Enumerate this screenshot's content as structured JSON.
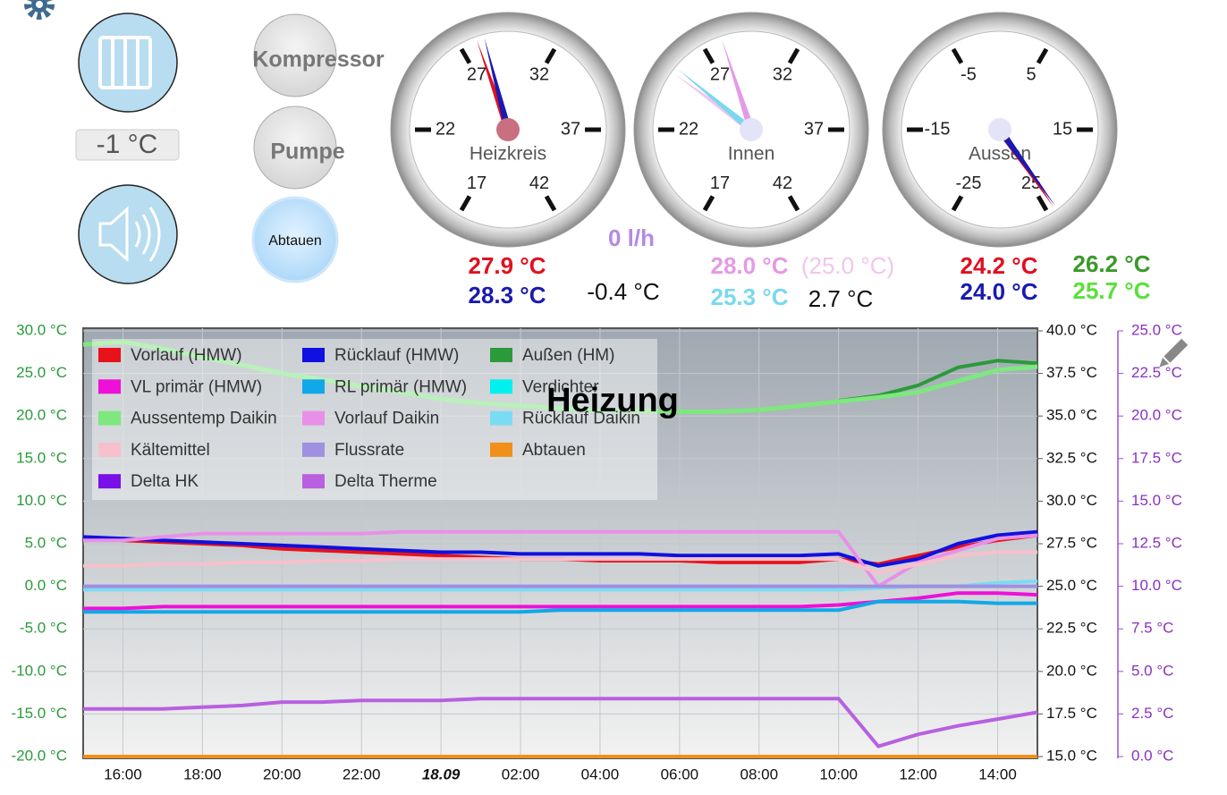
{
  "buttons": {
    "kompressor": "Kompressor",
    "pumpe": "Pumpe",
    "abtauen": "Abtauen"
  },
  "setpoint": "-1 °C",
  "gauges": [
    {
      "label": "Heizkreis",
      "range": [
        17,
        42
      ],
      "ticks": [
        17,
        22,
        27,
        32,
        37,
        42
      ],
      "hub": "#c87080",
      "needles": [
        {
          "value": 27.9,
          "label": "27.9 °C",
          "color": "#e01020"
        },
        {
          "value": 28.3,
          "label": "28.3 °C",
          "color": "#1a1ab0"
        }
      ]
    },
    {
      "label": "Innen",
      "range": [
        17,
        42
      ],
      "ticks": [
        17,
        22,
        27,
        32,
        37,
        42
      ],
      "hub": "#e4e4f8",
      "needles": [
        {
          "value": 28.0,
          "label": "28.0 °C",
          "color": "#e49ae4"
        },
        {
          "value": 25.0,
          "label": "(25.0 °C)",
          "color": "#f0c6ec"
        },
        {
          "value": 25.3,
          "label": "25.3 °C",
          "color": "#7ad8f0"
        }
      ]
    },
    {
      "label": "Aussen",
      "range": [
        -25,
        25
      ],
      "ticks": [
        -25,
        -15,
        -5,
        5,
        15,
        25
      ],
      "hub": "#e4e4f8",
      "needles": [
        {
          "value": 24.2,
          "label": "24.2 °C",
          "color": "#e01020"
        },
        {
          "value": 24.0,
          "label": "24.0 °C",
          "color": "#1a1ab0"
        }
      ]
    }
  ],
  "readouts": [
    {
      "text": "0 l/h",
      "color": "#b48ae4"
    },
    {
      "text": "-0.4 °C",
      "color": "#111111"
    },
    {
      "text": "2.7 °C",
      "color": "#111111"
    },
    {
      "text": "26.2 °C",
      "color": "#3a9a2a"
    },
    {
      "text": "25.7 °C",
      "color": "#5ae03a"
    }
  ],
  "chart_data": {
    "type": "line",
    "title": "Heizung",
    "categories": [
      null,
      "16:00",
      null,
      "18:00",
      null,
      "20:00",
      null,
      "22:00",
      null,
      "18.09",
      null,
      "02:00",
      null,
      "04:00",
      null,
      "06:00",
      null,
      "08:00",
      null,
      "10:00",
      null,
      "12:00",
      null,
      "14:00",
      null
    ],
    "xtick_bold": 9,
    "ylim": [
      -20,
      30
    ],
    "yticks": [
      {
        "value": 30,
        "label": "30.0 °C"
      },
      {
        "value": 25,
        "label": "25.0 °C"
      },
      {
        "value": 20,
        "label": "20.0 °C"
      },
      {
        "value": 15,
        "label": "15.0 °C"
      },
      {
        "value": 10,
        "label": "10.0 °C"
      },
      {
        "value": 5,
        "label": "5.0 °C"
      },
      {
        "value": 0,
        "label": "0.0 °C"
      },
      {
        "value": -5,
        "label": "-5.0 °C"
      },
      {
        "value": -10,
        "label": "-10.0 °C"
      },
      {
        "value": -15,
        "label": "-15.0 °C"
      },
      {
        "value": -20,
        "label": "-20.0 °C"
      }
    ],
    "y2lim": [
      15,
      40
    ],
    "y2ticks": [
      {
        "value": 40,
        "label": "40.0 °C"
      },
      {
        "value": 37.5,
        "label": "37.5 °C"
      },
      {
        "value": 35,
        "label": "35.0 °C"
      },
      {
        "value": 32.5,
        "label": "32.5 °C"
      },
      {
        "value": 30,
        "label": "30.0 °C"
      },
      {
        "value": 27.5,
        "label": "27.5 °C"
      },
      {
        "value": 25,
        "label": "25.0 °C"
      },
      {
        "value": 22.5,
        "label": "22.5 °C"
      },
      {
        "value": 20,
        "label": "20.0 °C"
      },
      {
        "value": 17.5,
        "label": "17.5 °C"
      },
      {
        "value": 15,
        "label": "15.0 °C"
      }
    ],
    "y3lim": [
      0,
      25
    ],
    "y3ticks": [
      {
        "value": 25,
        "label": "25.0 °C"
      },
      {
        "value": 22.5,
        "label": "22.5 °C"
      },
      {
        "value": 20,
        "label": "20.0 °C"
      },
      {
        "value": 17.5,
        "label": "17.5 °C"
      },
      {
        "value": 15,
        "label": "15.0 °C"
      },
      {
        "value": 12.5,
        "label": "12.5 °C"
      },
      {
        "value": 10,
        "label": "10.0 °C"
      },
      {
        "value": 7.5,
        "label": "7.5 °C"
      },
      {
        "value": 5,
        "label": "5.0 °C"
      },
      {
        "value": 2.5,
        "label": "2.5 °C"
      },
      {
        "value": 0,
        "label": "0.0 °C"
      }
    ],
    "grid": true,
    "series": [
      {
        "name": "Vorlauf (HMW)",
        "color": "#e8121a",
        "axis": "y2",
        "values": [
          27.8,
          27.7,
          27.6,
          27.5,
          27.4,
          27.2,
          27.1,
          27.0,
          26.9,
          26.8,
          26.7,
          26.6,
          26.6,
          26.5,
          26.5,
          26.5,
          26.4,
          26.4,
          26.4,
          26.6,
          26.3,
          26.8,
          27.3,
          27.7,
          28.0
        ]
      },
      {
        "name": "Rücklauf (HMW)",
        "color": "#1010e0",
        "axis": "y2",
        "values": [
          27.9,
          27.8,
          27.7,
          27.6,
          27.5,
          27.4,
          27.3,
          27.2,
          27.1,
          27.0,
          27.0,
          26.9,
          26.9,
          26.9,
          26.9,
          26.8,
          26.8,
          26.8,
          26.8,
          26.9,
          26.2,
          26.6,
          27.5,
          28.0,
          28.2
        ]
      },
      {
        "name": "Außen (HM)",
        "color": "#2a9a3a",
        "axis": "y",
        "values": [
          null,
          null,
          null,
          null,
          null,
          null,
          null,
          null,
          null,
          null,
          null,
          null,
          null,
          null,
          null,
          null,
          null,
          null,
          null,
          21.8,
          22.4,
          23.6,
          25.7,
          26.5,
          26.2
        ]
      },
      {
        "name": "VL primär (HMW)",
        "color": "#ee10d8",
        "axis": "y2",
        "values": [
          23.7,
          23.7,
          23.8,
          23.8,
          23.8,
          23.8,
          23.8,
          23.8,
          23.8,
          23.8,
          23.8,
          23.8,
          23.8,
          23.8,
          23.8,
          23.8,
          23.8,
          23.8,
          23.8,
          23.9,
          24.1,
          24.3,
          24.6,
          24.6,
          24.5
        ]
      },
      {
        "name": "RL primär (HMW)",
        "color": "#10a8e8",
        "axis": "y2",
        "values": [
          23.5,
          23.5,
          23.5,
          23.5,
          23.5,
          23.5,
          23.5,
          23.5,
          23.5,
          23.5,
          23.5,
          23.5,
          23.6,
          23.6,
          23.6,
          23.6,
          23.6,
          23.6,
          23.6,
          23.6,
          24.1,
          24.1,
          24.1,
          24.0,
          24.0
        ]
      },
      {
        "name": "Verdichter",
        "color": "#00f0f0",
        "axis": "y",
        "values": [
          null,
          null,
          null,
          null,
          null,
          null,
          null,
          null,
          null,
          null,
          null,
          null,
          null,
          null,
          null,
          null,
          null,
          null,
          null,
          null,
          null,
          null,
          null,
          null,
          null
        ]
      },
      {
        "name": "Aussentemp Daikin",
        "color": "#7ee87e",
        "axis": "y",
        "values": [
          28.4,
          28.7,
          27.9,
          26.9,
          26.0,
          25.0,
          24.3,
          23.5,
          22.8,
          22.0,
          21.5,
          21.2,
          20.9,
          20.7,
          20.6,
          20.5,
          20.5,
          20.7,
          21.2,
          21.7,
          22.2,
          22.8,
          24.1,
          25.4,
          25.8
        ]
      },
      {
        "name": "Vorlauf Daikin",
        "color": "#e890e8",
        "axis": "y2",
        "values": [
          27.7,
          27.7,
          27.9,
          28.1,
          28.1,
          28.1,
          28.1,
          28.1,
          28.2,
          28.2,
          28.2,
          28.2,
          28.2,
          28.2,
          28.2,
          28.2,
          28.2,
          28.2,
          28.2,
          28.2,
          25.0,
          26.4,
          27.1,
          27.8,
          28.0
        ]
      },
      {
        "name": "Rücklauf Daikin",
        "color": "#7adcf2",
        "axis": "y2",
        "values": [
          24.8,
          24.8,
          24.8,
          24.8,
          24.8,
          24.8,
          24.8,
          24.8,
          24.8,
          24.8,
          24.8,
          24.8,
          24.8,
          24.8,
          24.8,
          24.8,
          24.8,
          24.8,
          24.8,
          24.8,
          24.9,
          25.0,
          25.0,
          25.2,
          25.3
        ]
      },
      {
        "name": "Kältemittel",
        "color": "#f8c0cc",
        "axis": "y2",
        "values": [
          26.2,
          26.2,
          26.3,
          26.3,
          26.4,
          26.4,
          26.5,
          26.5,
          26.6,
          26.6,
          26.6,
          26.6,
          26.6,
          26.6,
          26.6,
          26.6,
          26.6,
          26.6,
          26.6,
          26.6,
          25.8,
          26.3,
          26.8,
          27.0,
          27.0
        ]
      },
      {
        "name": "Flussrate",
        "color": "#a090e0",
        "axis": "y",
        "values": [
          0,
          0,
          0,
          0,
          0,
          0,
          0,
          0,
          0,
          0,
          0,
          0,
          0,
          0,
          0,
          0,
          0,
          0,
          0,
          0,
          0,
          0,
          0,
          0,
          0
        ]
      },
      {
        "name": "Abtauen",
        "color": "#f0901a",
        "axis": "y3",
        "values": [
          0,
          0,
          0,
          0,
          0,
          0,
          0,
          0,
          0,
          0,
          0,
          0,
          0,
          0,
          0,
          0,
          0,
          0,
          0,
          0,
          0,
          0,
          0,
          0,
          0
        ]
      },
      {
        "name": "Delta HK",
        "color": "#7a10e8",
        "axis": "y",
        "values": [
          null,
          null,
          null,
          null,
          null,
          null,
          null,
          null,
          null,
          null,
          null,
          null,
          null,
          null,
          null,
          null,
          null,
          null,
          null,
          null,
          null,
          null,
          null,
          null,
          null
        ]
      },
      {
        "name": "Delta Therme",
        "color": "#b860e0",
        "axis": "y3",
        "values": [
          2.8,
          2.8,
          2.8,
          2.9,
          3.0,
          3.2,
          3.2,
          3.3,
          3.3,
          3.3,
          3.4,
          3.4,
          3.4,
          3.4,
          3.4,
          3.4,
          3.4,
          3.4,
          3.4,
          3.4,
          0.6,
          1.3,
          1.8,
          2.2,
          2.6
        ]
      }
    ]
  }
}
